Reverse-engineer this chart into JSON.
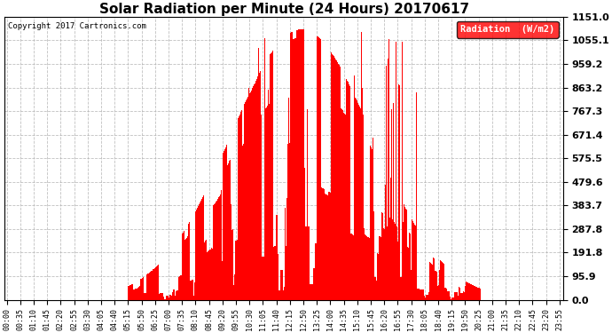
{
  "title": "Solar Radiation per Minute (24 Hours) 20170617",
  "copyright": "Copyright 2017 Cartronics.com",
  "legend_label": "Radiation  (W/m2)",
  "ylabel_values": [
    0.0,
    95.9,
    191.8,
    287.8,
    383.7,
    479.6,
    575.5,
    671.4,
    767.3,
    863.2,
    959.2,
    1055.1,
    1151.0
  ],
  "ymax": 1151.0,
  "ymin": 0.0,
  "bar_color": "#ff0000",
  "background_color": "#ffffff",
  "plot_bg_color": "#ffffff",
  "grid_color": "#b0b0b0",
  "title_fontsize": 11,
  "copyright_fontsize": 6.5,
  "tick_fontsize": 6,
  "legend_fontsize": 7.5,
  "ytick_fontsize": 8
}
